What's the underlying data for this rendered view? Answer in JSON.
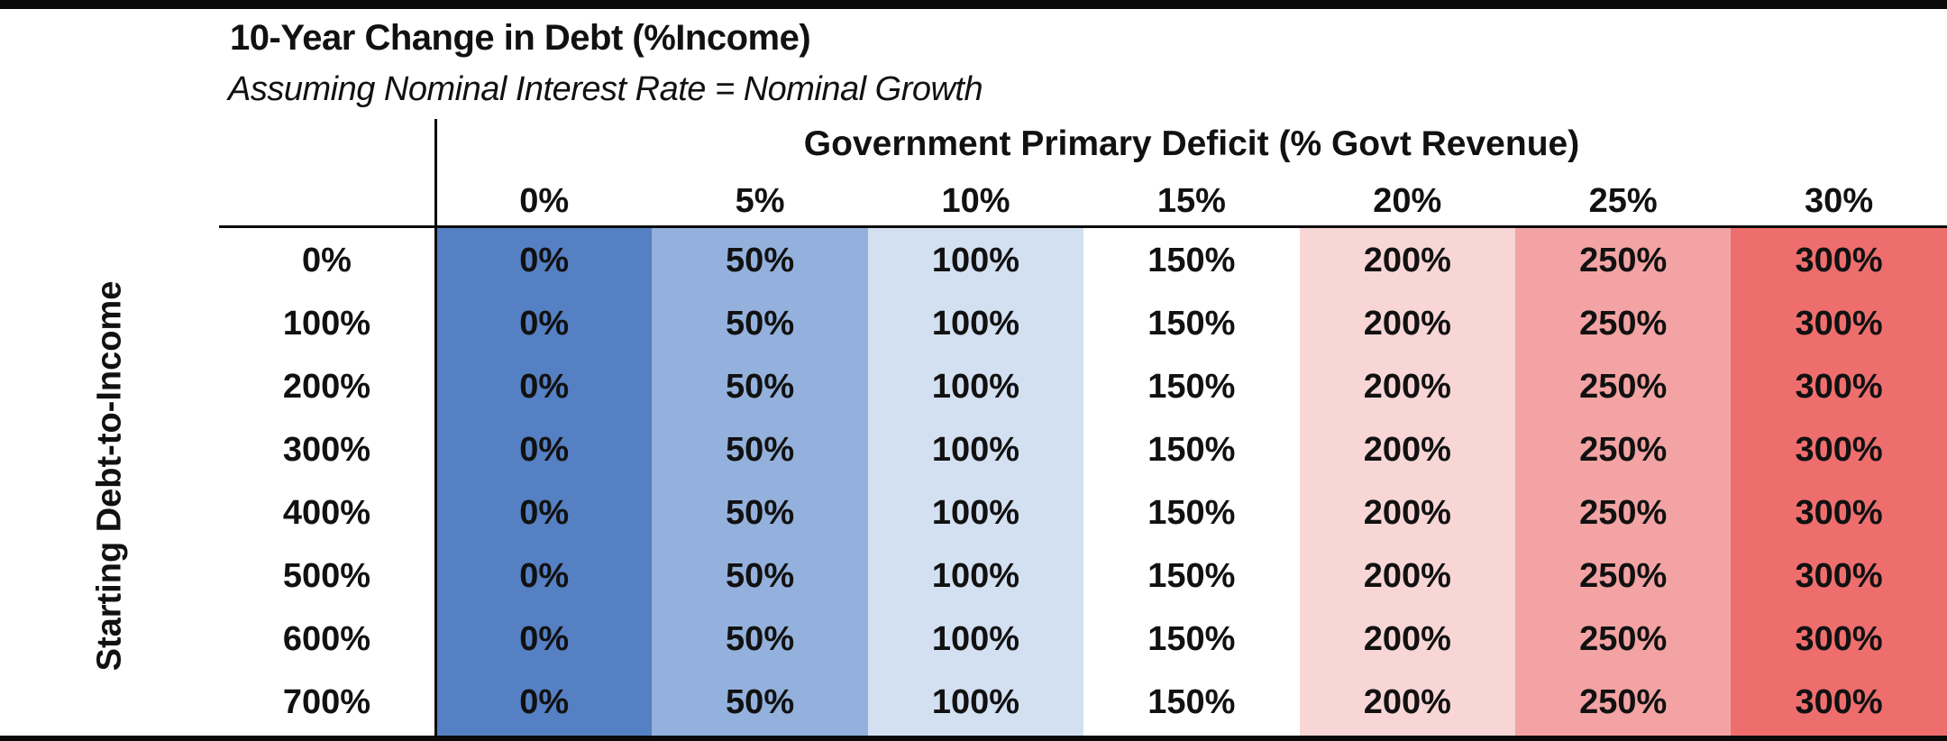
{
  "title": "10-Year Change in Debt (%Income)",
  "subtitle": "Assuming Nominal Interest Rate = Nominal Growth",
  "chart_data": {
    "type": "heatmap",
    "title": "10-Year Change in Debt (%Income)",
    "subtitle": "Assuming Nominal Interest Rate = Nominal Growth",
    "x_title": "Government Primary Deficit (% Govt Revenue)",
    "y_title": "Starting Debt-to-Income",
    "columns": [
      "0%",
      "5%",
      "10%",
      "15%",
      "20%",
      "25%",
      "30%"
    ],
    "rows": [
      "0%",
      "100%",
      "200%",
      "300%",
      "400%",
      "500%",
      "600%",
      "700%"
    ],
    "values": [
      [
        0,
        50,
        100,
        150,
        200,
        250,
        300
      ],
      [
        0,
        50,
        100,
        150,
        200,
        250,
        300
      ],
      [
        0,
        50,
        100,
        150,
        200,
        250,
        300
      ],
      [
        0,
        50,
        100,
        150,
        200,
        250,
        300
      ],
      [
        0,
        50,
        100,
        150,
        200,
        250,
        300
      ],
      [
        0,
        50,
        100,
        150,
        200,
        250,
        300
      ],
      [
        0,
        50,
        100,
        150,
        200,
        250,
        300
      ],
      [
        0,
        50,
        100,
        150,
        200,
        250,
        300
      ]
    ],
    "value_suffix": "%",
    "column_colors": [
      "#5580c3",
      "#93b1dc",
      "#d3e0f1",
      "#ffffff",
      "#f8d6d6",
      "#f3a3a3",
      "#ee6e6e"
    ]
  }
}
